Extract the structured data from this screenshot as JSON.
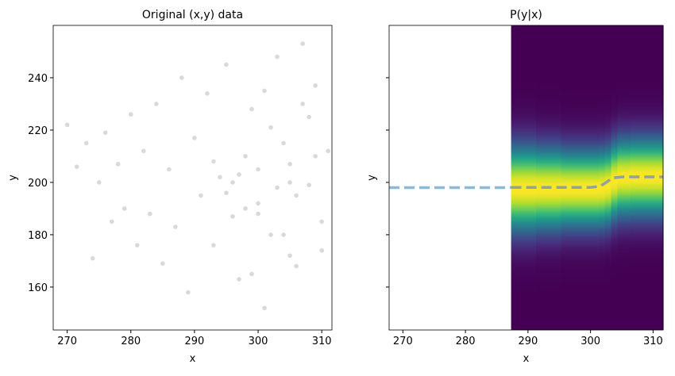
{
  "chart_data": [
    {
      "type": "scatter",
      "title": "Original (x,y) data",
      "xlabel": "x",
      "ylabel": "y",
      "x": [
        270,
        271.5,
        273,
        274,
        275,
        276,
        277,
        278,
        279,
        280,
        281,
        282,
        283,
        284,
        285,
        286,
        287,
        288,
        289,
        290,
        291,
        292,
        293,
        294,
        295,
        296,
        297,
        298,
        299,
        300,
        301,
        302,
        303,
        304,
        305,
        306,
        307,
        308,
        309,
        310,
        311,
        296,
        298,
        300,
        302,
        304,
        306,
        308,
        310,
        299,
        301,
        303,
        305,
        307,
        309,
        297,
        295,
        293,
        300,
        305
      ],
      "y": [
        222,
        206,
        215,
        171,
        200,
        219,
        185,
        207,
        190,
        226,
        176,
        212,
        188,
        230,
        169,
        205,
        183,
        240,
        158,
        217,
        195,
        234,
        176,
        202,
        245,
        187,
        163,
        210,
        228,
        192,
        152,
        221,
        248,
        180,
        207,
        168,
        253,
        199,
        237,
        174,
        212,
        200,
        190,
        205,
        180,
        215,
        195,
        225,
        185,
        165,
        235,
        198,
        172,
        230,
        210,
        203,
        196,
        208,
        188,
        200
      ],
      "color": "#000000",
      "alpha": 0.15,
      "xlim": [
        267.8,
        311.6
      ],
      "ylim": [
        143.6,
        260
      ],
      "xticks": [
        270,
        280,
        290,
        300,
        310
      ],
      "yticks": [
        160,
        180,
        200,
        220,
        240
      ]
    },
    {
      "type": "heatmap",
      "title": "P(y|x)",
      "xlabel": "x",
      "ylabel": "y",
      "xlim": [
        267.8,
        311.6
      ],
      "ylim": [
        143.6,
        260
      ],
      "xticks": [
        270,
        280,
        290,
        300,
        310
      ],
      "yticks": [
        160,
        180,
        200,
        220,
        240
      ],
      "columns": {
        "edges": [
          287.3,
          289.3,
          291.3,
          293.3,
          295.3,
          297.3,
          299.3,
          301.3,
          302.3,
          303.3,
          304.3,
          306.3,
          308.3,
          311.6
        ],
        "center": [
          197.6,
          197.6,
          197.6,
          197.6,
          197.6,
          197.6,
          197.6,
          197.8,
          198.5,
          200.5,
          201.8,
          202,
          202
        ],
        "spread": [
          11,
          11,
          10.5,
          10.5,
          10,
          10,
          10,
          10,
          10,
          10,
          10,
          10,
          10
        ]
      },
      "colormap": [
        "#440154",
        "#482878",
        "#3e4989",
        "#31688e",
        "#26828e",
        "#1f9e89",
        "#35b779",
        "#6ece58",
        "#b5de2b",
        "#fde725"
      ],
      "lines": [
        {
          "x": [
            267.8,
            287.3
          ],
          "y": [
            198,
            198
          ],
          "color": "#8ab9d9"
        },
        {
          "x": [
            287.3,
            300,
            301.5,
            302.5,
            303.5,
            305,
            311.6
          ],
          "y": [
            198.1,
            198.1,
            198.5,
            200,
            201.7,
            202.1,
            202.1
          ],
          "color": "#8fa39c"
        }
      ]
    }
  ]
}
